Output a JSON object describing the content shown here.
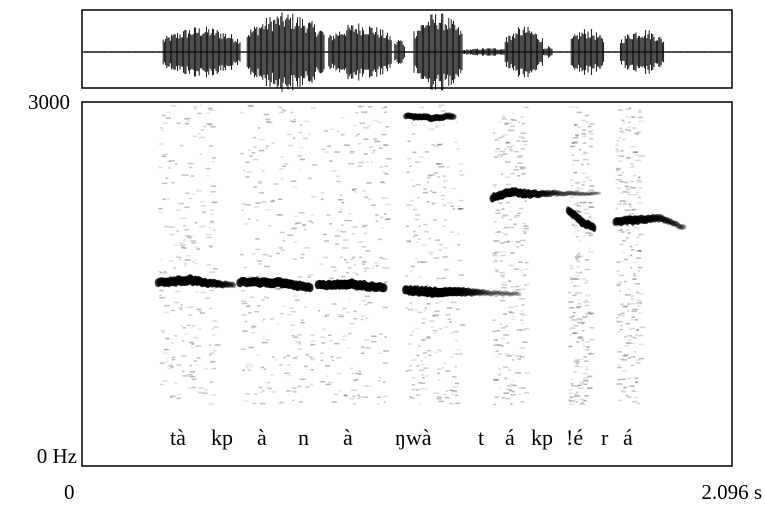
{
  "figure": {
    "y_axis": {
      "max_label": "3000",
      "min_label": "0 Hz",
      "max_hz": 3000,
      "min_hz": 0
    },
    "x_axis": {
      "start_label": "0",
      "end_label": "2.096 s",
      "start_s": 0,
      "end_s": 2.096
    },
    "segments": [
      "tà",
      "kp",
      "à",
      "n",
      "à",
      "ŋwà",
      "t",
      "á",
      "kp",
      "!é",
      "r",
      "á"
    ],
    "waveform_color": "#000000",
    "spectrogram_ink": "#000000"
  }
}
